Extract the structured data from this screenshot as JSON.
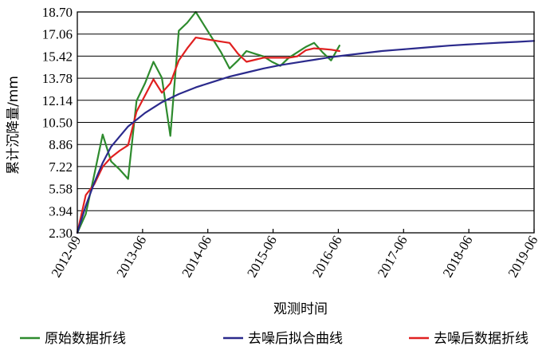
{
  "chart_data": {
    "type": "line",
    "xlabel": "观测时间",
    "ylabel": "累计沉降量/mm",
    "x_ticks": [
      "2012-09",
      "2013-06",
      "2014-06",
      "2015-06",
      "2016-06",
      "2017-06",
      "2018-06",
      "2019-06"
    ],
    "x_range": [
      0,
      27
    ],
    "y_ticks": [
      "2.30",
      "3.94",
      "5.58",
      "7.22",
      "8.86",
      "10.50",
      "12.14",
      "13.78",
      "15.42",
      "17.06",
      "18.70"
    ],
    "y_range": [
      2.3,
      18.7
    ],
    "grid": "horizontal",
    "legend_position": "bottom",
    "series": [
      {
        "name": "原始数据折线",
        "color": "#2e8b2e",
        "x": [
          0,
          0.5,
          1,
          1.5,
          2,
          2.5,
          3,
          3.5,
          4,
          4.5,
          5,
          5.5,
          6,
          6.5,
          7,
          7.5,
          8,
          8.5,
          9,
          9.5,
          10,
          10.5,
          11,
          11.5,
          12,
          12.5,
          13,
          13.5,
          14,
          14.5,
          15,
          15.5,
          16,
          16.5,
          17,
          17.5,
          18,
          18.5,
          19,
          19.5,
          20,
          20.5,
          21,
          21.5,
          22,
          22.5,
          23,
          23.5,
          24,
          24.5,
          25,
          25.5,
          26,
          26.5,
          27
        ],
        "y": [
          2.3,
          3.7,
          6.6,
          9.6,
          7.6,
          7.0,
          6.3,
          12.1,
          13.4,
          15.0,
          13.8,
          9.5,
          17.3,
          17.9,
          18.7,
          17.7,
          16.7,
          15.7,
          14.5,
          15.1,
          15.8,
          15.6,
          15.4,
          15.0,
          14.7,
          15.3,
          15.7,
          16.1,
          16.4,
          15.7,
          15.1,
          16.2,
          null,
          null,
          null,
          null,
          null,
          null,
          null,
          null,
          null,
          null,
          null,
          null,
          null,
          null,
          null,
          null,
          null,
          null,
          null,
          null,
          null,
          null,
          null
        ]
      },
      {
        "name": "去噪后拟合曲线",
        "color": "#2b2a8c",
        "curve": "fitted",
        "x": [
          0,
          0.5,
          1,
          1.5,
          2,
          3,
          4,
          5,
          6,
          7,
          8,
          9,
          10,
          11,
          12,
          13,
          14,
          15,
          16,
          17,
          18,
          19,
          20,
          21,
          22,
          23,
          24,
          25,
          26,
          27
        ],
        "y": [
          2.3,
          4.3,
          6.0,
          7.5,
          8.7,
          10.2,
          11.2,
          12.0,
          12.6,
          13.1,
          13.5,
          13.9,
          14.2,
          14.5,
          14.75,
          14.95,
          15.15,
          15.35,
          15.5,
          15.65,
          15.8,
          15.9,
          16.0,
          16.1,
          16.2,
          16.28,
          16.35,
          16.42,
          16.48,
          16.55
        ]
      },
      {
        "name": "去噪后数据折线",
        "color": "#e02020",
        "x": [
          0,
          0.5,
          1,
          1.5,
          2,
          2.5,
          3,
          3.5,
          4,
          4.5,
          5,
          5.5,
          6,
          6.5,
          7,
          7.5,
          8,
          8.5,
          9,
          9.5,
          10,
          10.5,
          11,
          11.5,
          12,
          12.5,
          13,
          13.5,
          14,
          14.5,
          15,
          15.5
        ],
        "y": [
          2.3,
          5.1,
          5.9,
          7.2,
          7.9,
          8.4,
          8.8,
          11.3,
          12.5,
          13.7,
          12.7,
          13.4,
          15.1,
          16.0,
          16.8,
          16.7,
          16.6,
          16.5,
          16.4,
          15.6,
          15.0,
          15.15,
          15.3,
          15.3,
          15.3,
          15.3,
          15.4,
          15.85,
          16.0,
          15.95,
          15.9,
          15.8
        ]
      }
    ]
  }
}
